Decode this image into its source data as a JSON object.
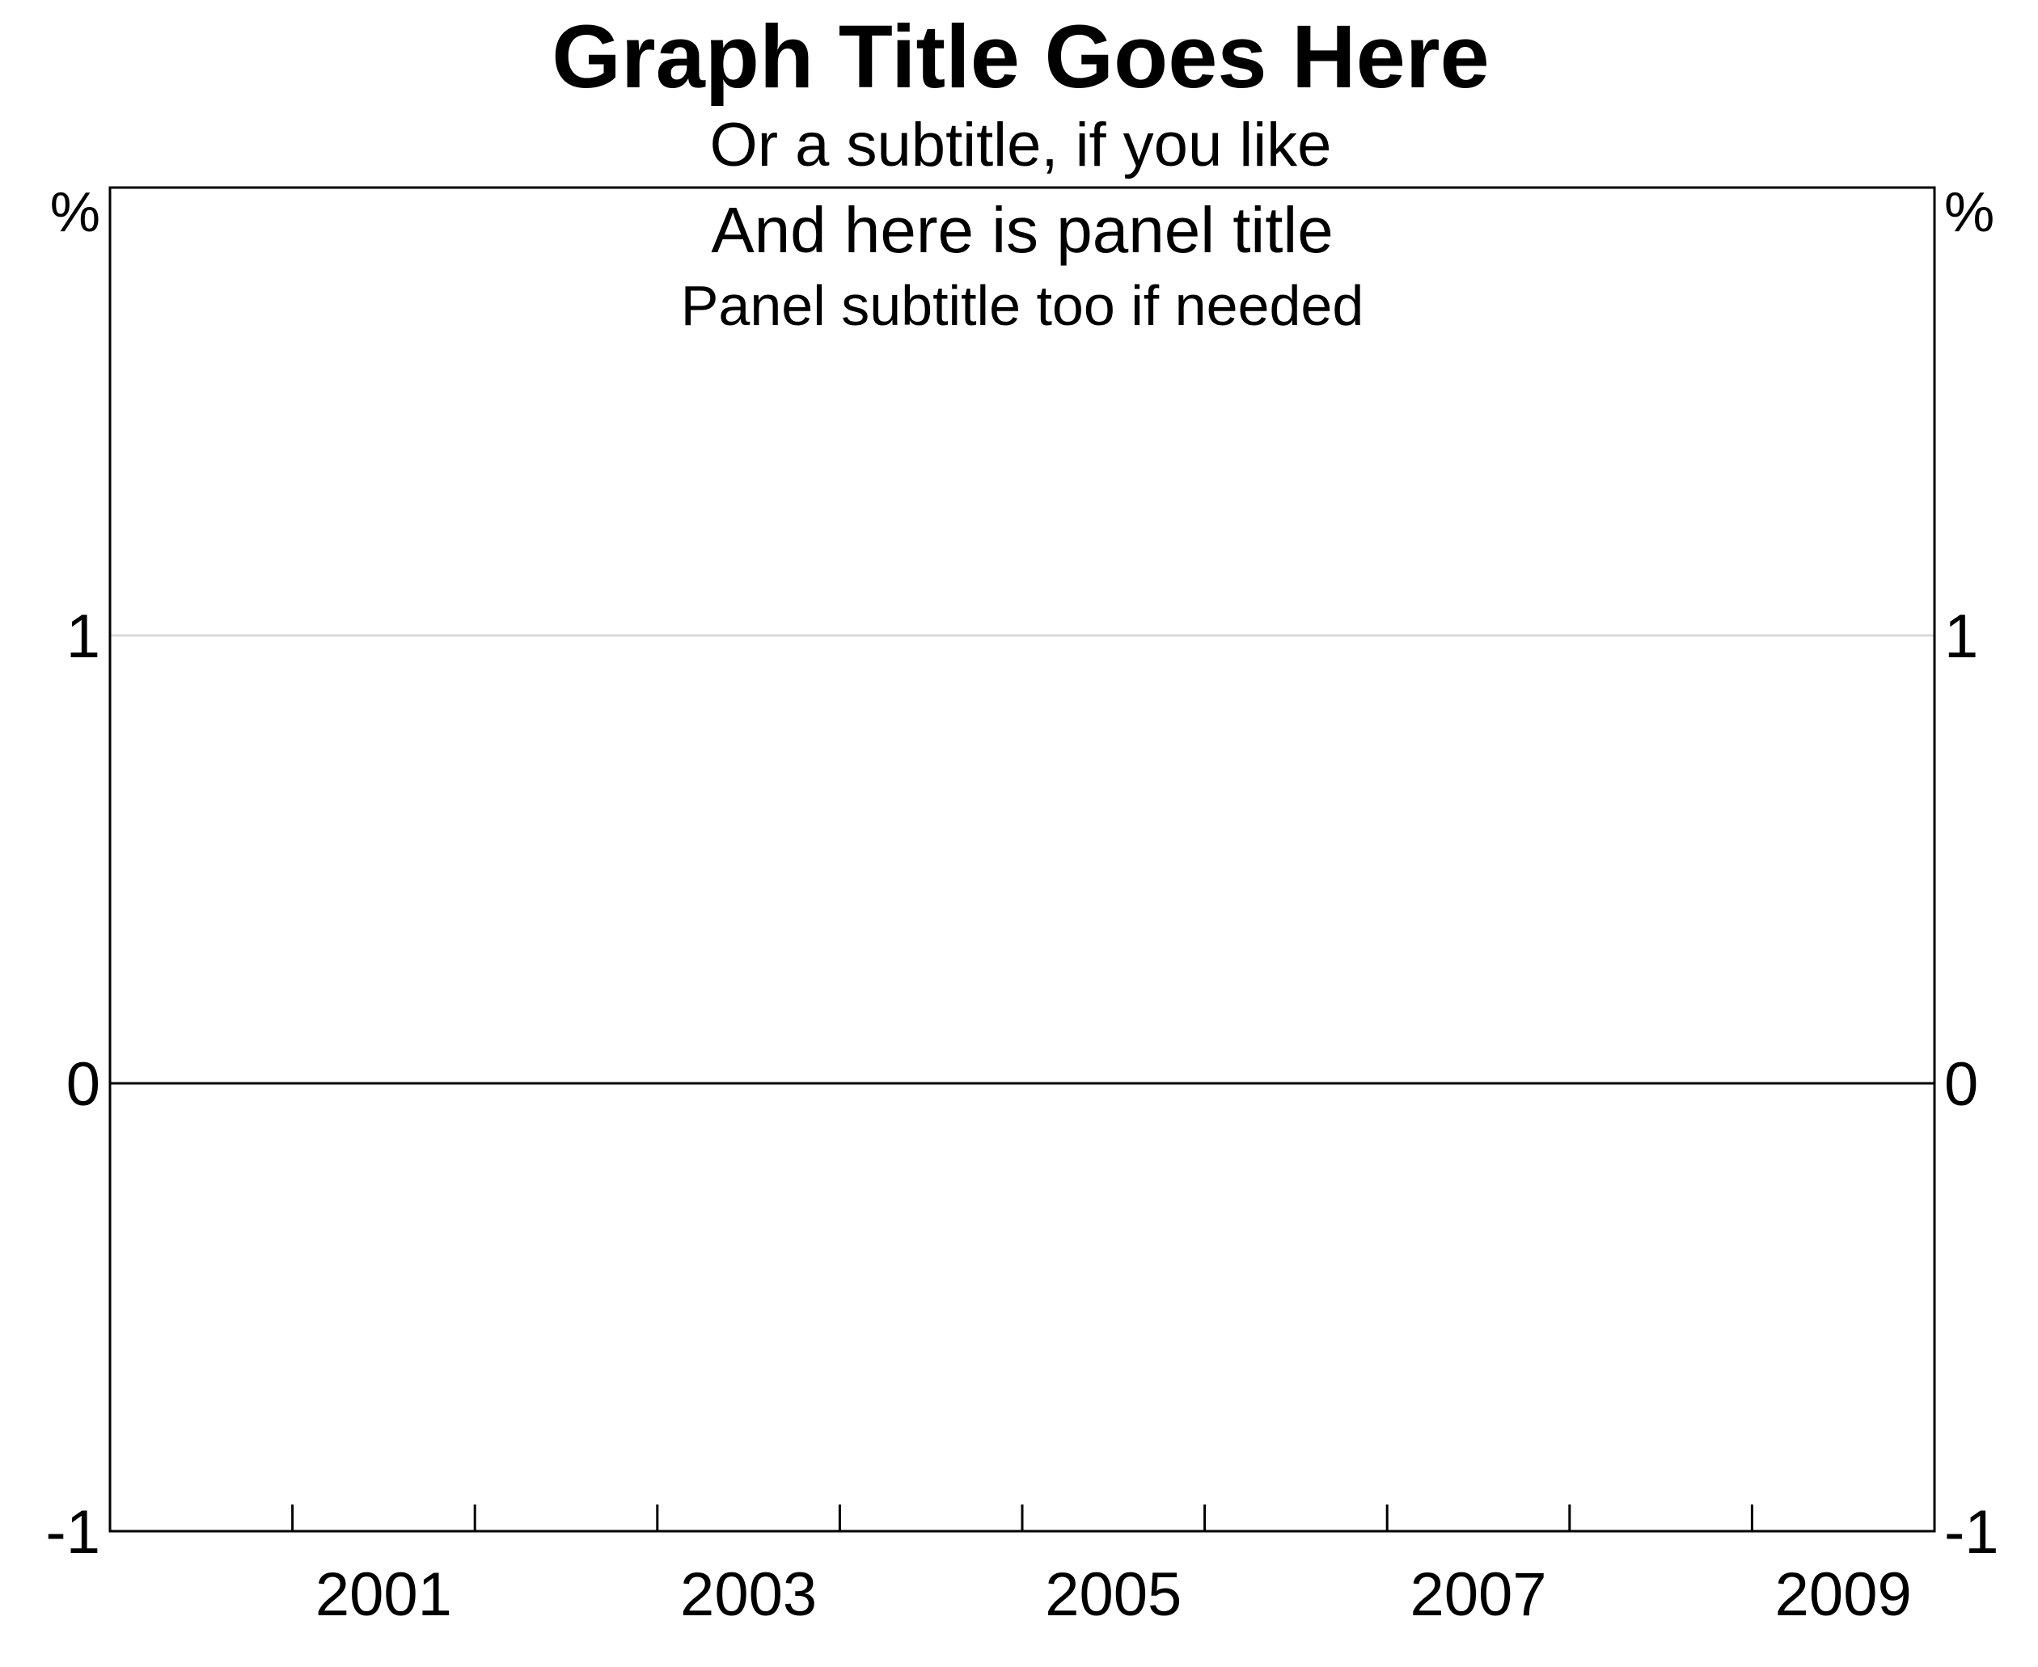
{
  "chart_data": {
    "type": "line",
    "title": "Graph Title Goes Here",
    "subtitle": "Or a subtitle, if you like",
    "panel_title": "And here is panel title",
    "panel_subtitle": "Panel subtitle too if needed",
    "xlabel": "",
    "ylabel_left": "%",
    "ylabel_right": "%",
    "xlim": [
      1999.5,
      2009.5
    ],
    "ylim": [
      -1,
      2
    ],
    "x_tick_labels": [
      {
        "label": "2001",
        "x": 2001
      },
      {
        "label": "2003",
        "x": 2003
      },
      {
        "label": "2005",
        "x": 2005
      },
      {
        "label": "2007",
        "x": 2007
      },
      {
        "label": "2009",
        "x": 2009
      }
    ],
    "x_minor_ticks": [
      2000.5,
      2001.5,
      2002.5,
      2003.5,
      2004.5,
      2005.5,
      2006.5,
      2007.5,
      2008.5
    ],
    "y_ticks": [
      {
        "label": "1",
        "value": 1
      },
      {
        "label": "0",
        "value": 0
      },
      {
        "label": "-1",
        "value": -1
      }
    ],
    "gridlines_y": [
      1
    ],
    "zero_line": 0,
    "series": [],
    "grid": true,
    "colors": {
      "gridline": "#d9d9d9",
      "axis": "#000000",
      "background": "#ffffff"
    }
  }
}
